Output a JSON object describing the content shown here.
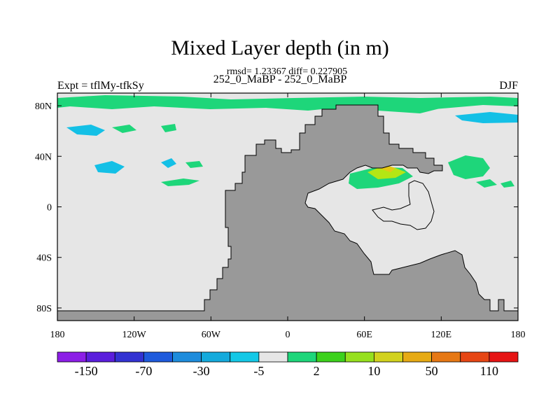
{
  "map": {
    "title": "Mixed Layer depth (in m)",
    "stats": "rmsd= 1.23367 diff= 0.227905",
    "subtitle": "252_0_MaBP - 252_0_MaBP",
    "experiment": "Expt = tflMy-tfkSy",
    "season": "DJF",
    "colors": {
      "ocean_zero": "#e6e6e6",
      "land": "#999999",
      "positive_small": "#1ed67a",
      "positive_medium": "#3cd11c",
      "positive_large": "#b4e614",
      "positive_peak": "#e6c814",
      "negative_small": "#14c0e6",
      "frame": "#000000"
    }
  },
  "axes": {
    "x_labels": [
      "180",
      "120W",
      "60W",
      "0",
      "60E",
      "120E",
      "180"
    ],
    "y_labels": [
      "80N",
      "40N",
      "0",
      "40S",
      "80S"
    ]
  },
  "colorbar": {
    "colors": [
      "#8c1ee6",
      "#5a1edc",
      "#3232d2",
      "#1e5adc",
      "#1e8cdc",
      "#14aadc",
      "#14c8e6",
      "#e6e6e6",
      "#1ed67a",
      "#3cd11c",
      "#96e01e",
      "#d2d21e",
      "#e6aa14",
      "#e67814",
      "#e64614",
      "#e61414"
    ],
    "labels": [
      "-150",
      "-70",
      "-30",
      "-5",
      "2",
      "10",
      "50",
      "110"
    ]
  }
}
